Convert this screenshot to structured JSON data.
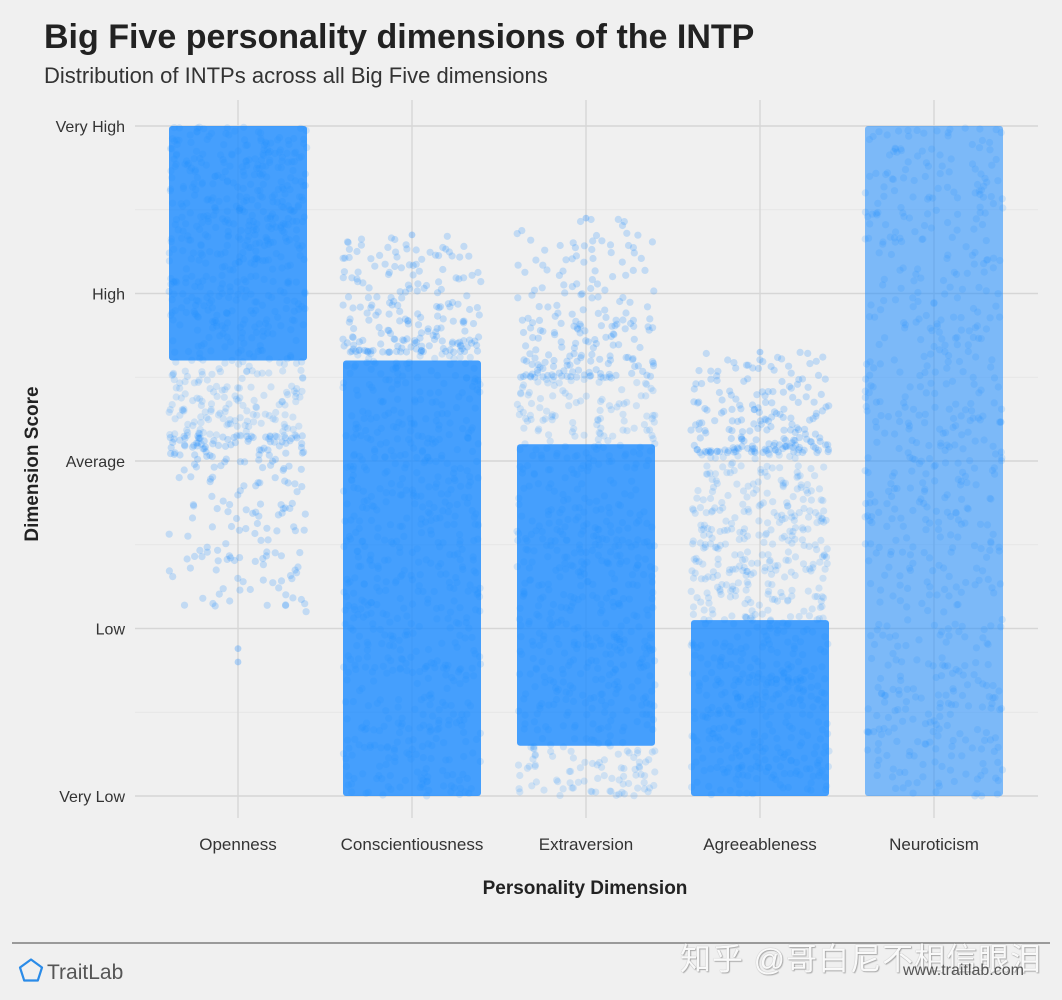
{
  "chart_data": {
    "type": "scatter",
    "title": "Big Five personality dimensions of the INTP",
    "subtitle": "Distribution of INTPs across all Big Five dimensions",
    "xlabel": "Personality Dimension",
    "ylabel": "Dimension Score",
    "categories": [
      "Openness",
      "Conscientiousness",
      "Extraversion",
      "Agreeableness",
      "Neuroticism"
    ],
    "y_ticks": [
      "Very Low",
      "Low",
      "Average",
      "High",
      "Very High"
    ],
    "ylim": [
      "Very Low",
      "Very High"
    ],
    "grid": true,
    "point_color": "#1e8cff",
    "distributions": [
      {
        "category": "Openness",
        "core_range": [
          2.6,
          4.0
        ],
        "dense_range": [
          2.15,
          4.0
        ],
        "sparse_range": [
          1.1,
          2.15
        ],
        "min": 0.8,
        "max": 4.0
      },
      {
        "category": "Conscientiousness",
        "core_range": [
          0.0,
          2.6
        ],
        "dense_range": [
          0.0,
          2.65
        ],
        "sparse_range": [
          2.65,
          3.35
        ],
        "min": 0.0,
        "max": 3.35
      },
      {
        "category": "Extraversion",
        "core_range": [
          0.3,
          2.1
        ],
        "dense_range": [
          0.0,
          2.5
        ],
        "sparse_range": [
          2.5,
          3.45
        ],
        "min": 0.0,
        "max": 3.45
      },
      {
        "category": "Agreeableness",
        "core_range": [
          0.0,
          1.05
        ],
        "dense_range": [
          0.0,
          2.05
        ],
        "sparse_range": [
          2.05,
          2.65
        ],
        "min": 0.0,
        "max": 2.65
      },
      {
        "category": "Neuroticism",
        "core_range": [
          0.0,
          4.0
        ],
        "dense_range": [
          0.0,
          4.0
        ],
        "sparse_range": [],
        "min": 0.0,
        "max": 4.0
      }
    ]
  },
  "brand": {
    "name": "TraitLab",
    "website": "www.traitlab.com",
    "icon": "pentagon-icon"
  },
  "watermark": "知乎 @哥白尼不相信眼泪"
}
